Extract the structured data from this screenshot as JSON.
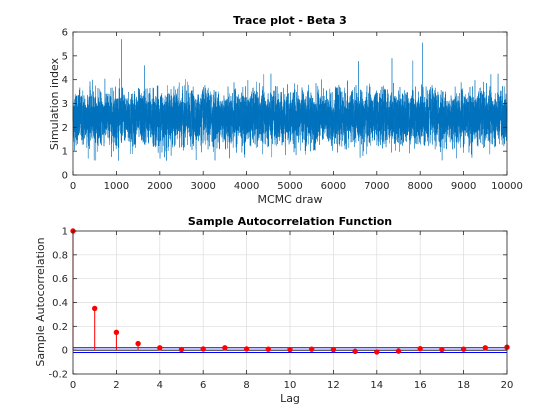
{
  "chart_data": [
    {
      "type": "line",
      "title": "Trace plot - Beta 3",
      "xlabel": "MCMC draw",
      "ylabel": "Simulation index",
      "xlim": [
        0,
        10000
      ],
      "ylim": [
        0,
        6
      ],
      "xticks": [
        0,
        1000,
        2000,
        3000,
        4000,
        5000,
        6000,
        7000,
        8000,
        9000,
        10000
      ],
      "yticks": [
        0,
        1,
        2,
        3,
        4,
        5,
        6
      ],
      "grid": false,
      "series_color": "#0072BD",
      "series": [
        {
          "n_draws": 10000,
          "center": 2.4,
          "typical_low": 1.5,
          "typical_high": 3.4,
          "notable_values": [
            {
              "x": 1120,
              "y": 5.7
            },
            {
              "x": 8050,
              "y": 5.55
            },
            {
              "x": 7350,
              "y": 4.9
            },
            {
              "x": 7830,
              "y": 4.8
            },
            {
              "x": 1650,
              "y": 4.6
            },
            {
              "x": 4580,
              "y": 0.75
            },
            {
              "x": 2050,
              "y": 0.95
            }
          ]
        }
      ]
    },
    {
      "type": "stem",
      "title": "Sample Autocorrelation Function",
      "xlabel": "Lag",
      "ylabel": "Sample Autocorrelation",
      "xlim": [
        0,
        20
      ],
      "ylim": [
        -0.2,
        1
      ],
      "xticks": [
        0,
        2,
        4,
        6,
        8,
        10,
        12,
        14,
        16,
        18,
        20
      ],
      "yticks": [
        -0.2,
        0,
        0.2,
        0.4,
        0.6,
        0.8,
        1
      ],
      "grid": true,
      "stem_color": "#FF0000",
      "bound_color": "#0000FF",
      "x": [
        0,
        1,
        2,
        3,
        4,
        5,
        6,
        7,
        8,
        9,
        10,
        11,
        12,
        13,
        14,
        15,
        16,
        17,
        18,
        19,
        20
      ],
      "values": [
        1.0,
        0.35,
        0.15,
        0.055,
        0.02,
        0.005,
        0.01,
        0.02,
        0.01,
        0.008,
        0.005,
        0.008,
        0.005,
        -0.01,
        -0.015,
        -0.008,
        0.012,
        0.005,
        0.008,
        0.02,
        0.025
      ],
      "confidence_bounds": [
        0.02,
        -0.02
      ]
    }
  ]
}
